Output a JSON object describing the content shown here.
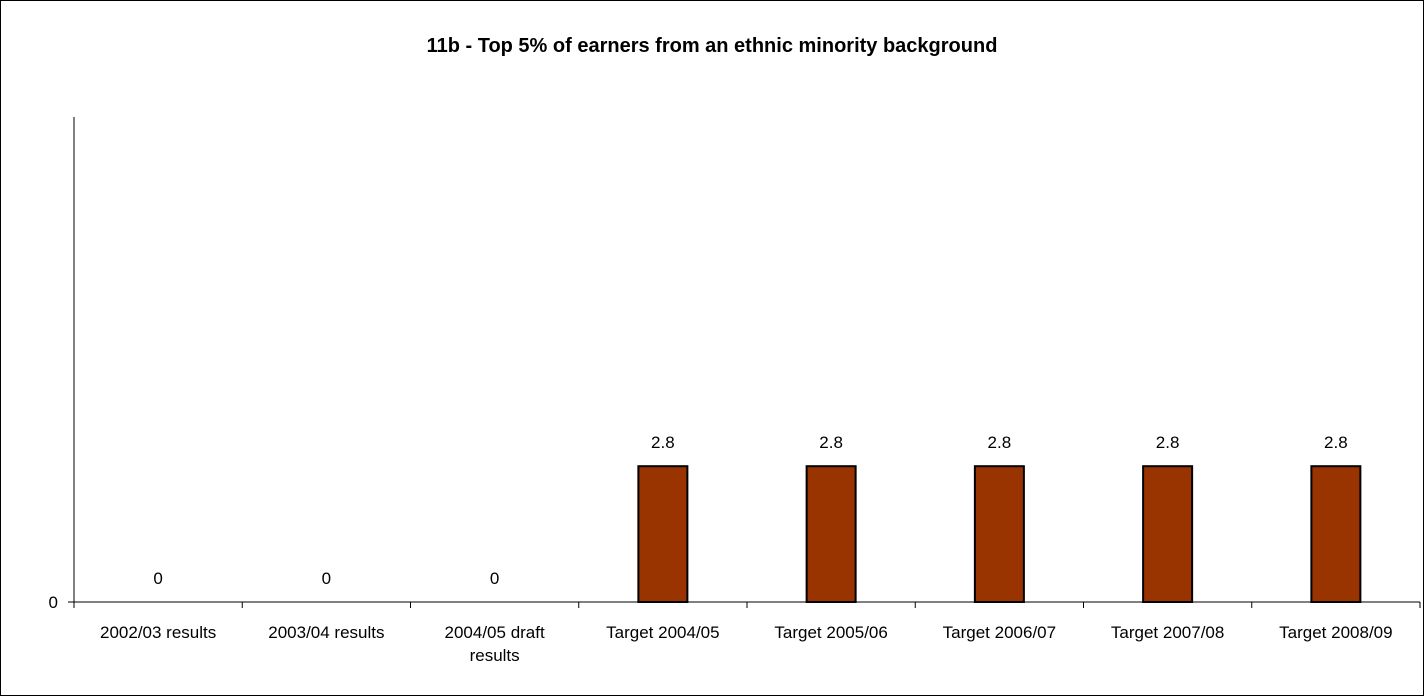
{
  "chart_data": {
    "type": "bar",
    "title": "11b - Top 5% of earners from an ethnic minority background",
    "categories": [
      [
        "2002/03 results"
      ],
      [
        "2003/04 results"
      ],
      [
        "2004/05 draft",
        "results"
      ],
      [
        "Target 2004/05"
      ],
      [
        "Target 2005/06"
      ],
      [
        "Target 2006/07"
      ],
      [
        "Target 2007/08"
      ],
      [
        "Target 2008/09"
      ]
    ],
    "values": [
      0,
      0,
      0,
      2.8,
      2.8,
      2.8,
      2.8,
      2.8
    ],
    "data_labels": [
      "0",
      "0",
      "0",
      "2.8",
      "2.8",
      "2.8",
      "2.8",
      "2.8"
    ],
    "yticks": [
      "0"
    ],
    "ylim": [
      0,
      10
    ],
    "grid": false,
    "legend": "none",
    "bar_color": "#993300",
    "bar_edge_color": "#000000"
  }
}
